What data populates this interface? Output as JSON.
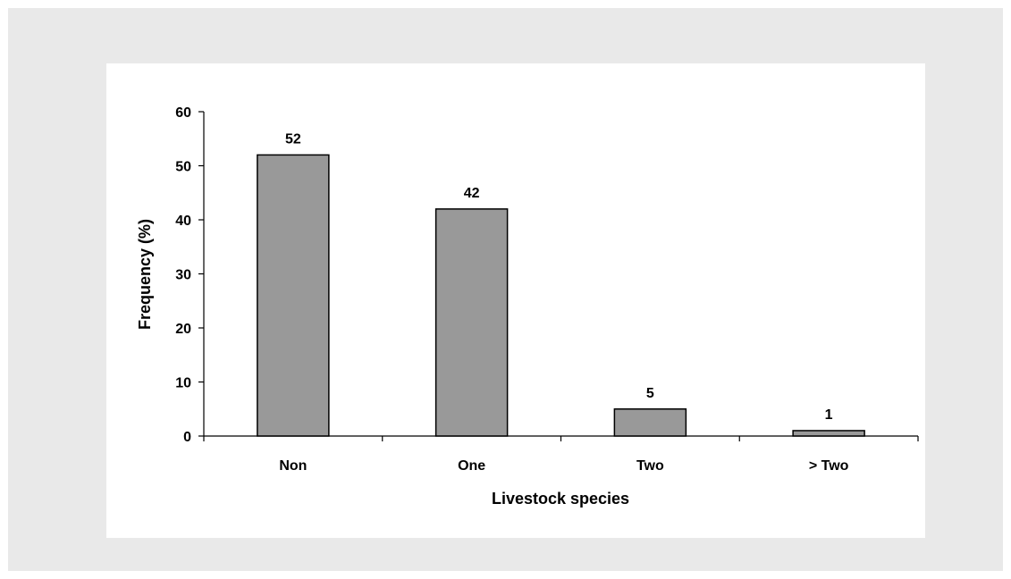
{
  "chart_data": {
    "type": "bar",
    "categories": [
      "Non",
      "One",
      "Two",
      "> Two"
    ],
    "values": [
      52,
      42,
      5,
      1
    ],
    "data_labels": [
      "52",
      "42",
      "5",
      "1"
    ],
    "title": "",
    "xlabel": "Livestock species",
    "ylabel": "Frequency (%)",
    "ylim": [
      0,
      60
    ],
    "yticks": [
      "0",
      "10",
      "20",
      "30",
      "40",
      "50",
      "60"
    ],
    "grid": false,
    "legend": "none",
    "colors": {
      "bar_fill": "#999999",
      "bar_stroke": "#000000",
      "axis": "#000000",
      "background": "#e9e9e9"
    }
  }
}
